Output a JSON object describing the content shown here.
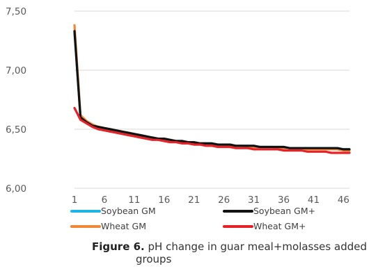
{
  "chart_data": {
    "type": "line",
    "x_ticks": [
      "1",
      "6",
      "11",
      "16",
      "21",
      "26",
      "31",
      "36",
      "41",
      "46"
    ],
    "y_ticks": [
      "6,00",
      "6,50",
      "7,00",
      "7,50"
    ],
    "ylim": [
      6.0,
      7.5
    ],
    "xlim": [
      1,
      47
    ],
    "grid": "horizontal",
    "legend_position": "bottom",
    "x": [
      1,
      2,
      3,
      4,
      5,
      6,
      7,
      8,
      9,
      10,
      11,
      12,
      13,
      14,
      15,
      16,
      17,
      18,
      19,
      20,
      21,
      22,
      23,
      24,
      25,
      26,
      27,
      28,
      29,
      30,
      31,
      32,
      33,
      34,
      35,
      36,
      37,
      38,
      39,
      40,
      41,
      42,
      43,
      44,
      45,
      46,
      47
    ],
    "series": [
      {
        "name": "Soybean GM",
        "color": "#1fb4e8",
        "values": [
          7.32,
          6.6,
          6.56,
          6.53,
          6.51,
          6.5,
          6.49,
          6.48,
          6.47,
          6.46,
          6.45,
          6.44,
          6.43,
          6.43,
          6.42,
          6.42,
          6.41,
          6.4,
          6.4,
          6.39,
          6.39,
          6.38,
          6.38,
          6.38,
          6.37,
          6.37,
          6.37,
          6.36,
          6.36,
          6.36,
          6.36,
          6.35,
          6.35,
          6.35,
          6.35,
          6.35,
          6.34,
          6.34,
          6.34,
          6.34,
          6.34,
          6.34,
          6.34,
          6.34,
          6.34,
          6.33,
          6.33
        ]
      },
      {
        "name": "Soybean GM+",
        "color": "#111111",
        "values": [
          7.33,
          6.6,
          6.56,
          6.53,
          6.52,
          6.51,
          6.5,
          6.49,
          6.48,
          6.47,
          6.46,
          6.45,
          6.44,
          6.43,
          6.42,
          6.42,
          6.41,
          6.4,
          6.4,
          6.39,
          6.39,
          6.38,
          6.38,
          6.38,
          6.37,
          6.37,
          6.37,
          6.36,
          6.36,
          6.36,
          6.36,
          6.35,
          6.35,
          6.35,
          6.35,
          6.35,
          6.34,
          6.34,
          6.34,
          6.34,
          6.34,
          6.34,
          6.34,
          6.34,
          6.34,
          6.33,
          6.33
        ]
      },
      {
        "name": "Wheat GM",
        "color": "#f0883a",
        "values": [
          7.38,
          6.62,
          6.57,
          6.54,
          6.52,
          6.51,
          6.5,
          6.49,
          6.48,
          6.47,
          6.46,
          6.45,
          6.44,
          6.43,
          6.42,
          6.42,
          6.41,
          6.4,
          6.4,
          6.39,
          6.39,
          6.38,
          6.38,
          6.37,
          6.37,
          6.37,
          6.36,
          6.36,
          6.36,
          6.35,
          6.35,
          6.35,
          6.35,
          6.35,
          6.34,
          6.34,
          6.34,
          6.34,
          6.34,
          6.33,
          6.33,
          6.33,
          6.33,
          6.33,
          6.33,
          6.32,
          6.32
        ]
      },
      {
        "name": "Wheat GM+",
        "color": "#e42228",
        "values": [
          6.68,
          6.58,
          6.55,
          6.52,
          6.5,
          6.49,
          6.48,
          6.47,
          6.46,
          6.45,
          6.44,
          6.43,
          6.42,
          6.41,
          6.41,
          6.4,
          6.39,
          6.39,
          6.38,
          6.38,
          6.37,
          6.37,
          6.36,
          6.36,
          6.35,
          6.35,
          6.35,
          6.34,
          6.34,
          6.34,
          6.33,
          6.33,
          6.33,
          6.33,
          6.33,
          6.32,
          6.32,
          6.32,
          6.32,
          6.31,
          6.31,
          6.31,
          6.31,
          6.3,
          6.3,
          6.3,
          6.3
        ]
      }
    ]
  },
  "caption": {
    "label": "Figure 6.",
    "text_line1": " pH change in guar meal+molasses added",
    "text_line2": "groups"
  }
}
